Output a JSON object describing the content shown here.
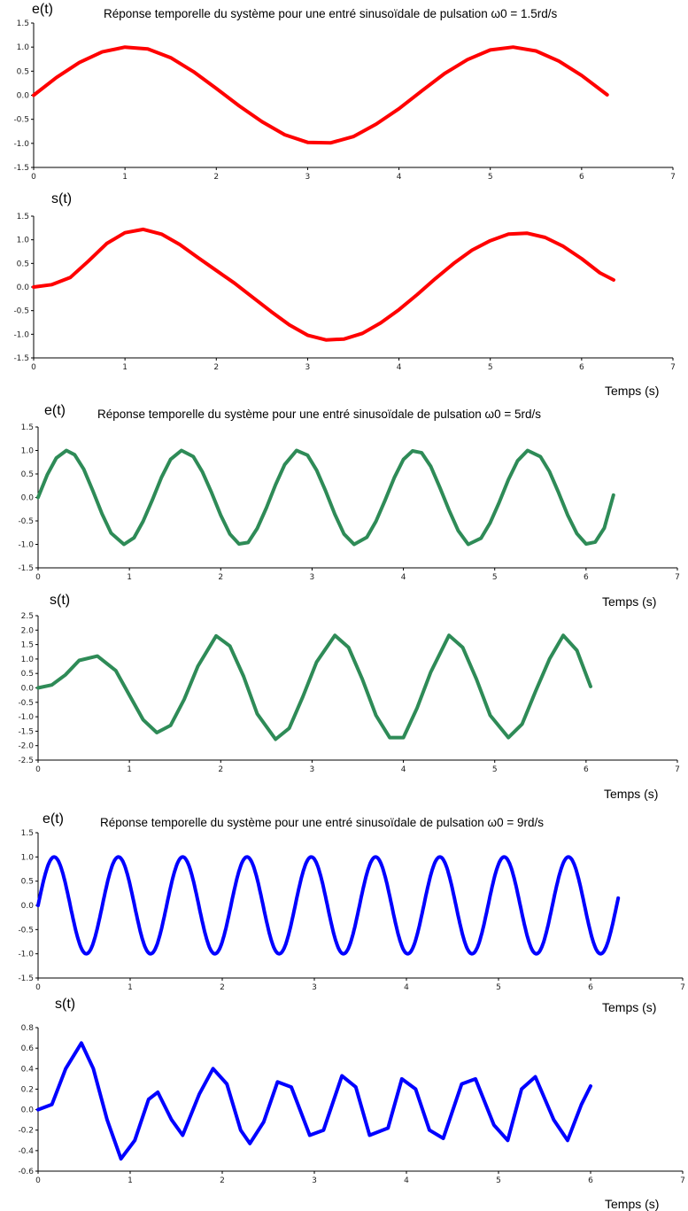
{
  "chart_data": [
    {
      "type": "line",
      "title": "Réponse temporelle du système pour une entré sinusoïdale de pulsation ω0 = 1.5rd/s",
      "ylabel": "e(t)",
      "xlabel": "",
      "xlim": [
        0,
        7
      ],
      "ylim": [
        -1.5,
        1.5
      ],
      "xticks": [
        "0",
        "1",
        "2",
        "3",
        "4",
        "5",
        "6",
        "7"
      ],
      "yticks": [
        "1.5",
        "1.0",
        "0.5",
        "0.0",
        "-0.5",
        "-1.0",
        "-1.5"
      ],
      "color": "#ff0000",
      "series": [
        {
          "x": [
            0,
            0.25,
            0.5,
            0.75,
            1.0,
            1.25,
            1.5,
            1.75,
            2.0,
            2.25,
            2.5,
            2.75,
            3.0,
            3.25,
            3.5,
            3.75,
            4.0,
            4.25,
            4.5,
            4.75,
            5.0,
            5.25,
            5.5,
            5.75,
            6.0,
            6.28
          ],
          "y": [
            0,
            0.37,
            0.68,
            0.9,
            1.0,
            0.96,
            0.78,
            0.49,
            0.14,
            -0.22,
            -0.55,
            -0.82,
            -0.98,
            -0.99,
            -0.86,
            -0.6,
            -0.28,
            0.09,
            0.45,
            0.74,
            0.94,
            1.0,
            0.92,
            0.71,
            0.41,
            0.01
          ]
        }
      ]
    },
    {
      "type": "line",
      "title": "",
      "ylabel": "s(t)",
      "xlabel": "Temps (s)",
      "xlim": [
        0,
        7
      ],
      "ylim": [
        -1.5,
        1.5
      ],
      "xticks": [
        "0",
        "1",
        "2",
        "3",
        "4",
        "5",
        "6",
        "7"
      ],
      "yticks": [
        "1.5",
        "1.0",
        "0.5",
        "0.0",
        "-0.5",
        "-1.0",
        "-1.5"
      ],
      "color": "#ff0000",
      "series": [
        {
          "x": [
            0,
            0.2,
            0.4,
            0.6,
            0.8,
            1.0,
            1.2,
            1.4,
            1.6,
            1.8,
            2.0,
            2.2,
            2.4,
            2.6,
            2.8,
            3.0,
            3.2,
            3.4,
            3.6,
            3.8,
            4.0,
            4.2,
            4.4,
            4.6,
            4.8,
            5.0,
            5.2,
            5.4,
            5.6,
            5.8,
            6.0,
            6.2,
            6.35
          ],
          "y": [
            0,
            0.05,
            0.2,
            0.55,
            0.92,
            1.15,
            1.22,
            1.12,
            0.9,
            0.62,
            0.35,
            0.08,
            -0.22,
            -0.52,
            -0.8,
            -1.02,
            -1.12,
            -1.1,
            -0.98,
            -0.76,
            -0.48,
            -0.16,
            0.18,
            0.5,
            0.78,
            0.98,
            1.12,
            1.14,
            1.05,
            0.86,
            0.6,
            0.3,
            0.15
          ]
        }
      ]
    },
    {
      "type": "line",
      "title": "Réponse temporelle du système pour une entré sinusoïdale de pulsation ω0 = 5rd/s",
      "ylabel": "e(t)",
      "xlabel": "Temps (s)",
      "xlim": [
        0,
        7
      ],
      "ylim": [
        -1.5,
        1.5
      ],
      "xticks": [
        "0",
        "1",
        "2",
        "3",
        "4",
        "5",
        "6",
        "7"
      ],
      "yticks": [
        "1.5",
        "1.0",
        "0.5",
        "0.0",
        "-0.5",
        "-1.0",
        "-1.5"
      ],
      "color": "#2e8b57",
      "series": [
        {
          "x": [
            0,
            0.1,
            0.2,
            0.31,
            0.4,
            0.5,
            0.6,
            0.7,
            0.8,
            0.94,
            1.05,
            1.15,
            1.25,
            1.35,
            1.45,
            1.57,
            1.7,
            1.8,
            1.9,
            2.0,
            2.1,
            2.2,
            2.3,
            2.4,
            2.5,
            2.6,
            2.7,
            2.83,
            2.95,
            3.05,
            3.15,
            3.25,
            3.35,
            3.46,
            3.6,
            3.7,
            3.8,
            3.9,
            4.0,
            4.1,
            4.2,
            4.3,
            4.4,
            4.5,
            4.6,
            4.71,
            4.85,
            4.95,
            5.05,
            5.15,
            5.25,
            5.36,
            5.5,
            5.6,
            5.7,
            5.8,
            5.9,
            6.0,
            6.1,
            6.2,
            6.3
          ],
          "y": [
            0,
            0.48,
            0.84,
            1.0,
            0.91,
            0.6,
            0.14,
            -0.35,
            -0.76,
            -1.0,
            -0.86,
            -0.51,
            -0.06,
            0.42,
            0.81,
            1.0,
            0.87,
            0.54,
            0.1,
            -0.38,
            -0.78,
            -0.99,
            -0.96,
            -0.66,
            -0.22,
            0.27,
            0.7,
            1.0,
            0.9,
            0.58,
            0.13,
            -0.36,
            -0.78,
            -1.0,
            -0.85,
            -0.51,
            -0.06,
            0.42,
            0.81,
            0.99,
            0.95,
            0.66,
            0.21,
            -0.27,
            -0.71,
            -1.0,
            -0.87,
            -0.54,
            -0.1,
            0.38,
            0.78,
            1.0,
            0.87,
            0.55,
            0.1,
            -0.38,
            -0.77,
            -0.99,
            -0.95,
            -0.65,
            0.05
          ]
        }
      ]
    },
    {
      "type": "line",
      "title": "",
      "ylabel": "s(t)",
      "xlabel": "Temps (s)",
      "xlim": [
        0,
        7
      ],
      "ylim": [
        -2.5,
        2.5
      ],
      "xticks": [
        "0",
        "1",
        "2",
        "3",
        "4",
        "5",
        "6",
        "7"
      ],
      "yticks": [
        "2.5",
        "2.0",
        "1.5",
        "1.0",
        "0.5",
        "0.0",
        "-0.5",
        "-1.0",
        "-1.5",
        "-2.0",
        "-2.5"
      ],
      "color": "#2e8b57",
      "series": [
        {
          "x": [
            0,
            0.15,
            0.3,
            0.45,
            0.65,
            0.85,
            1.0,
            1.15,
            1.3,
            1.45,
            1.6,
            1.75,
            1.95,
            2.1,
            2.25,
            2.4,
            2.6,
            2.75,
            2.9,
            3.05,
            3.25,
            3.4,
            3.55,
            3.7,
            3.85,
            4.0,
            4.15,
            4.3,
            4.5,
            4.65,
            4.8,
            4.95,
            5.15,
            5.3,
            5.45,
            5.6,
            5.75,
            5.9,
            6.05
          ],
          "y": [
            0,
            0.1,
            0.45,
            0.95,
            1.1,
            0.6,
            -0.25,
            -1.1,
            -1.55,
            -1.3,
            -0.4,
            0.75,
            1.8,
            1.45,
            0.4,
            -0.9,
            -1.78,
            -1.4,
            -0.3,
            0.9,
            1.82,
            1.4,
            0.3,
            -0.95,
            -1.72,
            -1.72,
            -0.7,
            0.55,
            1.82,
            1.4,
            0.3,
            -0.95,
            -1.72,
            -1.25,
            -0.1,
            1.0,
            1.82,
            1.3,
            0.05
          ]
        }
      ]
    },
    {
      "type": "line",
      "title": "Réponse temporelle du système pour une entré sinusoïdale de pulsation ω0 = 9rd/s",
      "ylabel": "e(t)",
      "xlabel": "Temps (s)",
      "xlim": [
        0,
        7
      ],
      "ylim": [
        -1.5,
        1.5
      ],
      "xticks": [
        "0",
        "1",
        "2",
        "3",
        "4",
        "5",
        "6",
        "7"
      ],
      "yticks": [
        "1.5",
        "1.0",
        "0.5",
        "0.0",
        "-0.5",
        "-1.0",
        "-1.5"
      ],
      "color": "#0000ff",
      "freq": 9,
      "x_end": 6.3
    },
    {
      "type": "line",
      "title": "",
      "ylabel": "s(t)",
      "xlabel": "Temps (s)",
      "xlim": [
        0,
        7
      ],
      "ylim": [
        -0.6,
        0.8
      ],
      "xticks": [
        "0",
        "1",
        "2",
        "3",
        "4",
        "5",
        "6",
        "7"
      ],
      "yticks": [
        "0.8",
        "0.6",
        "0.4",
        "0.2",
        "0.0",
        "-0.2",
        "-0.4",
        "-0.6"
      ],
      "color": "#0000ff",
      "series": [
        {
          "x": [
            0,
            0.15,
            0.3,
            0.47,
            0.6,
            0.75,
            0.9,
            1.05,
            1.2,
            1.3,
            1.45,
            1.57,
            1.75,
            1.9,
            2.05,
            2.2,
            2.3,
            2.45,
            2.6,
            2.75,
            2.95,
            3.1,
            3.3,
            3.45,
            3.6,
            3.8,
            3.95,
            4.1,
            4.25,
            4.4,
            4.6,
            4.75,
            4.95,
            5.1,
            5.25,
            5.4,
            5.6,
            5.75,
            5.9,
            6.0
          ],
          "y": [
            0,
            0.05,
            0.4,
            0.65,
            0.4,
            -0.1,
            -0.48,
            -0.3,
            0.1,
            0.17,
            -0.1,
            -0.25,
            0.15,
            0.4,
            0.25,
            -0.2,
            -0.33,
            -0.12,
            0.27,
            0.22,
            -0.25,
            -0.2,
            0.33,
            0.22,
            -0.25,
            -0.18,
            0.3,
            0.2,
            -0.2,
            -0.28,
            0.25,
            0.3,
            -0.15,
            -0.3,
            0.2,
            0.32,
            -0.1,
            -0.3,
            0.05,
            0.23
          ]
        }
      ]
    }
  ]
}
